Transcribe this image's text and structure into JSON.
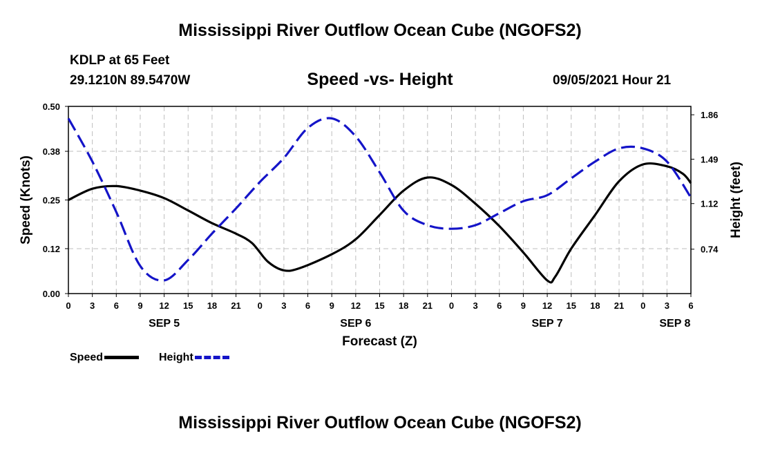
{
  "header": {
    "title": "Mississippi River Outflow Ocean Cube (NGOFS2)",
    "station": "KDLP at 65 Feet",
    "coords": "29.1210N  89.5470W",
    "subtitle": "Speed -vs- Height",
    "datetime": "09/05/2021 Hour 21"
  },
  "footer": {
    "title": "Mississippi River Outflow Ocean Cube (NGOFS2)"
  },
  "legend": {
    "speed_label": "Speed",
    "height_label": "Height"
  },
  "colors": {
    "speed": "#000000",
    "height": "#1414c8",
    "grid": "#bdbdbd"
  },
  "chart_data": {
    "type": "line",
    "xlabel": "Forecast (Z)",
    "ylabel_left": "Speed (Knots)",
    "ylabel_right": "Height (feet)",
    "x_range": [
      0,
      78
    ],
    "xticks_hours": [
      0,
      3,
      6,
      9,
      12,
      15,
      18,
      21,
      24,
      27,
      30,
      33,
      36,
      39,
      42,
      45,
      48,
      51,
      54,
      57,
      60,
      63,
      66,
      69,
      72,
      75,
      78
    ],
    "xtick_labels": [
      "0",
      "3",
      "6",
      "9",
      "12",
      "15",
      "18",
      "21",
      "0",
      "3",
      "6",
      "9",
      "12",
      "15",
      "18",
      "21",
      "0",
      "3",
      "6",
      "9",
      "12",
      "15",
      "18",
      "21",
      "0",
      "3",
      "6"
    ],
    "day_labels": [
      {
        "hour": 12,
        "label": "SEP 5"
      },
      {
        "hour": 36,
        "label": "SEP 6"
      },
      {
        "hour": 60,
        "label": "SEP 7"
      },
      {
        "hour": 76,
        "label": "SEP 8"
      }
    ],
    "y_left": {
      "range": [
        0.0,
        0.5
      ],
      "ticks": [
        0.0,
        0.12,
        0.25,
        0.38,
        0.5
      ],
      "tick_labels": [
        "0.00",
        "0.12",
        "0.25",
        "0.38",
        "0.50"
      ]
    },
    "y_right": {
      "range": [
        0.37,
        1.93
      ],
      "ticks": [
        0.74,
        1.12,
        1.49,
        1.86
      ],
      "tick_labels": [
        "0.74",
        "1.12",
        "1.49",
        "1.86"
      ]
    },
    "grid": true,
    "series": [
      {
        "name": "Speed",
        "axis": "left",
        "style": "solid",
        "x": [
          0,
          3,
          6,
          9,
          12,
          15,
          18,
          21,
          23,
          25,
          27,
          29,
          33,
          36,
          39,
          42,
          45,
          48,
          51,
          54,
          57,
          60,
          61,
          63,
          66,
          69,
          72,
          75,
          77,
          78
        ],
        "y": [
          0.25,
          0.28,
          0.287,
          0.275,
          0.255,
          0.222,
          0.188,
          0.16,
          0.135,
          0.085,
          0.062,
          0.068,
          0.105,
          0.145,
          0.21,
          0.275,
          0.31,
          0.29,
          0.24,
          0.18,
          0.11,
          0.035,
          0.045,
          0.12,
          0.21,
          0.3,
          0.345,
          0.34,
          0.32,
          0.295
        ]
      },
      {
        "name": "Height",
        "axis": "right",
        "style": "dashed",
        "x": [
          0,
          3,
          6,
          9,
          12,
          15,
          18,
          21,
          24,
          27,
          30,
          33,
          36,
          39,
          42,
          45,
          48,
          51,
          54,
          57,
          60,
          63,
          66,
          69,
          72,
          75,
          78
        ],
        "y": [
          1.83,
          1.47,
          1.05,
          0.6,
          0.48,
          0.65,
          0.87,
          1.08,
          1.3,
          1.5,
          1.75,
          1.83,
          1.68,
          1.38,
          1.06,
          0.94,
          0.91,
          0.94,
          1.04,
          1.14,
          1.19,
          1.33,
          1.47,
          1.58,
          1.58,
          1.47,
          1.17
        ]
      }
    ]
  }
}
